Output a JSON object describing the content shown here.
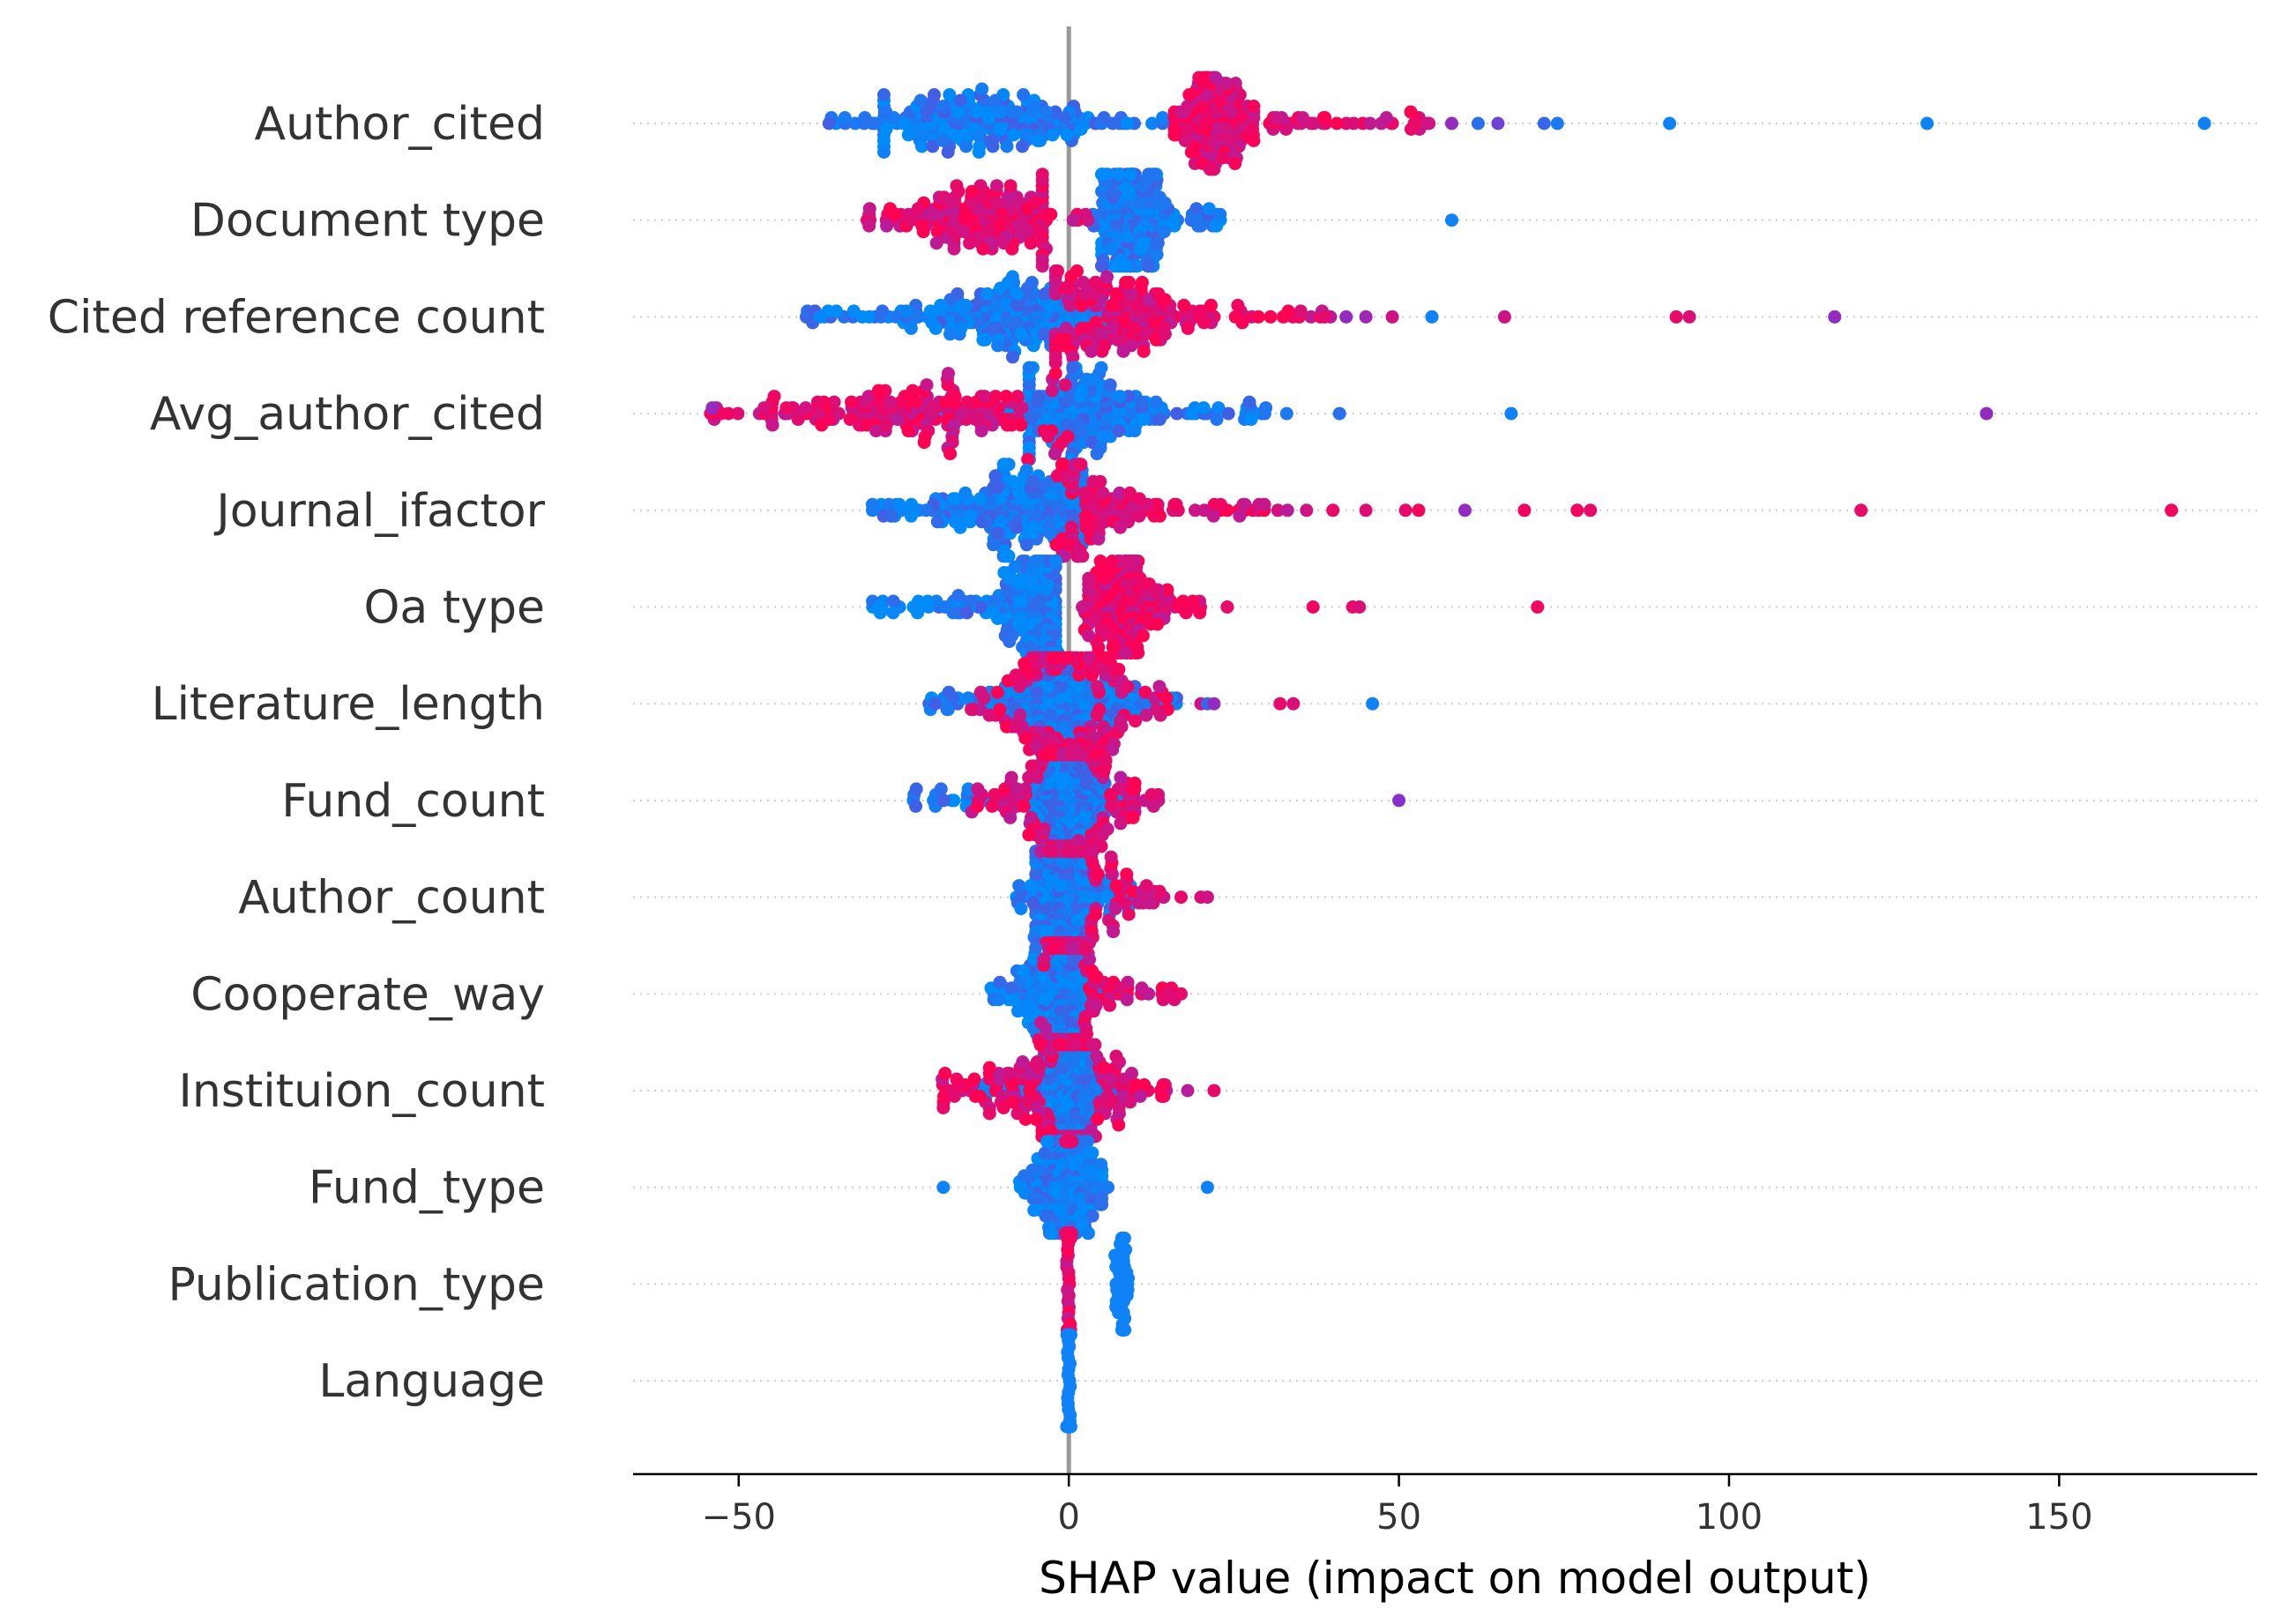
{
  "colors": {
    "low": "#008bfb",
    "high": "#ff0052",
    "zero_line": "#999999",
    "row_guide": "#cccccc",
    "axis": "#000000"
  },
  "chart_data": {
    "type": "scatter",
    "subtype": "shap-beeswarm",
    "xlabel": "SHAP value (impact on model output)",
    "ylabel": "",
    "xlim": [
      -66,
      180
    ],
    "xticks": [
      -50,
      0,
      50,
      100,
      150
    ],
    "xtick_labels": [
      "−50",
      "0",
      "50",
      "100",
      "150"
    ],
    "zero_line": 0,
    "grid": false,
    "features": [
      {
        "name": "Author_cited",
        "mid_split": 20,
        "low_range": [
          -37,
          20
        ],
        "high_range": [
          20,
          55
        ],
        "core_low": [
          -28,
          5
        ],
        "core_high": [
          16,
          28
        ],
        "peak": -14,
        "outliers": [
          {
            "x": 58,
            "c": 0.55
          },
          {
            "x": 62,
            "c": 0.15
          },
          {
            "x": 65,
            "c": 0.4
          },
          {
            "x": 72,
            "c": 0.2
          },
          {
            "x": 74,
            "c": 0.1
          },
          {
            "x": 91,
            "c": 0.05
          },
          {
            "x": 130,
            "c": 0.05
          },
          {
            "x": 172,
            "c": 0.05
          }
        ]
      },
      {
        "name": "Document type",
        "mid_split": 3,
        "low_range": [
          3,
          23
        ],
        "high_range": [
          -31,
          3
        ],
        "core_low": [
          5,
          16
        ],
        "core_high": [
          -28,
          -4
        ],
        "peak": 9,
        "peak2": -12,
        "outliers": [
          {
            "x": 58,
            "c": 0.05
          }
        ]
      },
      {
        "name": "Cited reference count",
        "mid_split": 0,
        "low_range": [
          -40,
          5
        ],
        "high_range": [
          0,
          40
        ],
        "core_low": [
          -24,
          5
        ],
        "core_high": [
          -2,
          22
        ],
        "peak": -8,
        "peak2": 8,
        "outliers": [
          {
            "x": 42,
            "c": 0.55
          },
          {
            "x": 45,
            "c": 0.6
          },
          {
            "x": 49,
            "c": 0.8
          },
          {
            "x": 55,
            "c": 0.05
          },
          {
            "x": 66,
            "c": 0.8
          },
          {
            "x": 92,
            "c": 0.9
          },
          {
            "x": 94,
            "c": 0.85
          },
          {
            "x": 116,
            "c": 0.55
          }
        ]
      },
      {
        "name": "Avg_author_cited",
        "mid_split": -5,
        "low_range": [
          -20,
          30
        ],
        "high_range": [
          -55,
          0
        ],
        "core_low": [
          -6,
          18
        ],
        "core_high": [
          -45,
          -2
        ],
        "peak": 2,
        "outliers": [
          {
            "x": -54,
            "c": 0.55
          },
          {
            "x": 33,
            "c": 0.1
          },
          {
            "x": 41,
            "c": 0.15
          },
          {
            "x": 67,
            "c": 0.05
          },
          {
            "x": 139,
            "c": 0.55
          }
        ]
      },
      {
        "name": "Journal_ifactor",
        "mid_split": 0,
        "low_range": [
          -30,
          2
        ],
        "high_range": [
          -2,
          34
        ],
        "core_low": [
          -22,
          2
        ],
        "core_high": [
          -1,
          25
        ],
        "peak": -7,
        "peak2": 0,
        "outliers": [
          {
            "x": 36,
            "c": 0.8
          },
          {
            "x": 40,
            "c": 0.9
          },
          {
            "x": 45,
            "c": 0.85
          },
          {
            "x": 51,
            "c": 0.9
          },
          {
            "x": 53,
            "c": 0.95
          },
          {
            "x": 60,
            "c": 0.55
          },
          {
            "x": 69,
            "c": 0.95
          },
          {
            "x": 77,
            "c": 0.95
          },
          {
            "x": 79,
            "c": 0.9
          },
          {
            "x": 120,
            "c": 0.9
          },
          {
            "x": 167,
            "c": 0.95
          }
        ]
      },
      {
        "name": "Oa type",
        "mid_split": 0,
        "low_range": [
          -30,
          -1
        ],
        "high_range": [
          2,
          20
        ],
        "core_low": [
          -18,
          -2
        ],
        "core_high": [
          3,
          14
        ],
        "peak": -4,
        "peak2": 8,
        "outliers": [
          {
            "x": 24,
            "c": 0.9
          },
          {
            "x": 37,
            "c": 0.95
          },
          {
            "x": 43,
            "c": 0.9
          },
          {
            "x": 44,
            "c": 0.85
          },
          {
            "x": 71,
            "c": 0.95
          }
        ]
      },
      {
        "name": "Literature_length",
        "mid_split": 0,
        "low_range": [
          -22,
          18
        ],
        "high_range": [
          -15,
          15
        ],
        "core_low": [
          -12,
          10
        ],
        "core_high": [
          -8,
          8
        ],
        "peak": 0,
        "outliers": [
          {
            "x": 20,
            "c": 0.8
          },
          {
            "x": 21,
            "c": 0.2
          },
          {
            "x": 22,
            "c": 0.55
          },
          {
            "x": 32,
            "c": 0.9
          },
          {
            "x": 34,
            "c": 0.85
          },
          {
            "x": 46,
            "c": 0.05
          }
        ]
      },
      {
        "name": "Fund_count",
        "mid_split": 0,
        "low_range": [
          -25,
          10
        ],
        "high_range": [
          -15,
          14
        ],
        "core_low": [
          -6,
          6
        ],
        "core_high": [
          -10,
          10
        ],
        "peak": 0,
        "outliers": [
          {
            "x": 50,
            "c": 0.5
          }
        ]
      },
      {
        "name": "Author_count",
        "mid_split": 0,
        "low_range": [
          -8,
          10
        ],
        "high_range": [
          -5,
          15
        ],
        "core_low": [
          -5,
          4
        ],
        "core_high": [
          -3,
          8
        ],
        "peak": -1,
        "outliers": [
          {
            "x": 17,
            "c": 0.9
          },
          {
            "x": 20,
            "c": 0.85
          },
          {
            "x": 21,
            "c": 0.8
          }
        ]
      },
      {
        "name": "Cooperate_way",
        "mid_split": 0,
        "low_range": [
          -12,
          6
        ],
        "high_range": [
          -5,
          17
        ],
        "core_low": [
          -10,
          2
        ],
        "core_high": [
          -3,
          10
        ],
        "peak": -1,
        "outliers": [
          {
            "x": 16,
            "c": 0.85
          },
          {
            "x": 17,
            "c": 0.9
          }
        ]
      },
      {
        "name": "Instituion_count",
        "mid_split": 0,
        "low_range": [
          -14,
          8
        ],
        "high_range": [
          -20,
          15
        ],
        "core_low": [
          -4,
          4
        ],
        "core_high": [
          -12,
          12
        ],
        "peak": 0,
        "outliers": [
          {
            "x": -19,
            "c": 0.9
          },
          {
            "x": -17,
            "c": 0.95
          },
          {
            "x": 18,
            "c": 0.7
          },
          {
            "x": 22,
            "c": 0.9
          }
        ]
      },
      {
        "name": "Fund_type",
        "mid_split": 0,
        "low_range": [
          -8,
          6
        ],
        "high_range": [
          -0.5,
          0.5
        ],
        "core_low": [
          -6,
          5
        ],
        "core_high": [
          -0.3,
          0.3
        ],
        "peak": 0,
        "outliers": [
          {
            "x": -19,
            "c": 0.05
          },
          {
            "x": 21,
            "c": 0.05
          }
        ]
      },
      {
        "name": "Publication_type",
        "mid_split": 0,
        "low_range": [
          7,
          9
        ],
        "high_range": [
          -0.3,
          0.3
        ],
        "core_low": [
          7,
          9
        ],
        "core_high": [
          -0.3,
          0.3
        ],
        "peak": 0,
        "outliers": []
      },
      {
        "name": "Language",
        "mid_split": 0,
        "low_range": [
          -0.3,
          0.3
        ],
        "high_range": [
          -0.3,
          0.3
        ],
        "core_low": [
          -0.3,
          0.3
        ],
        "core_high": [
          -0.3,
          0.3
        ],
        "peak": 0,
        "outliers": []
      }
    ]
  }
}
